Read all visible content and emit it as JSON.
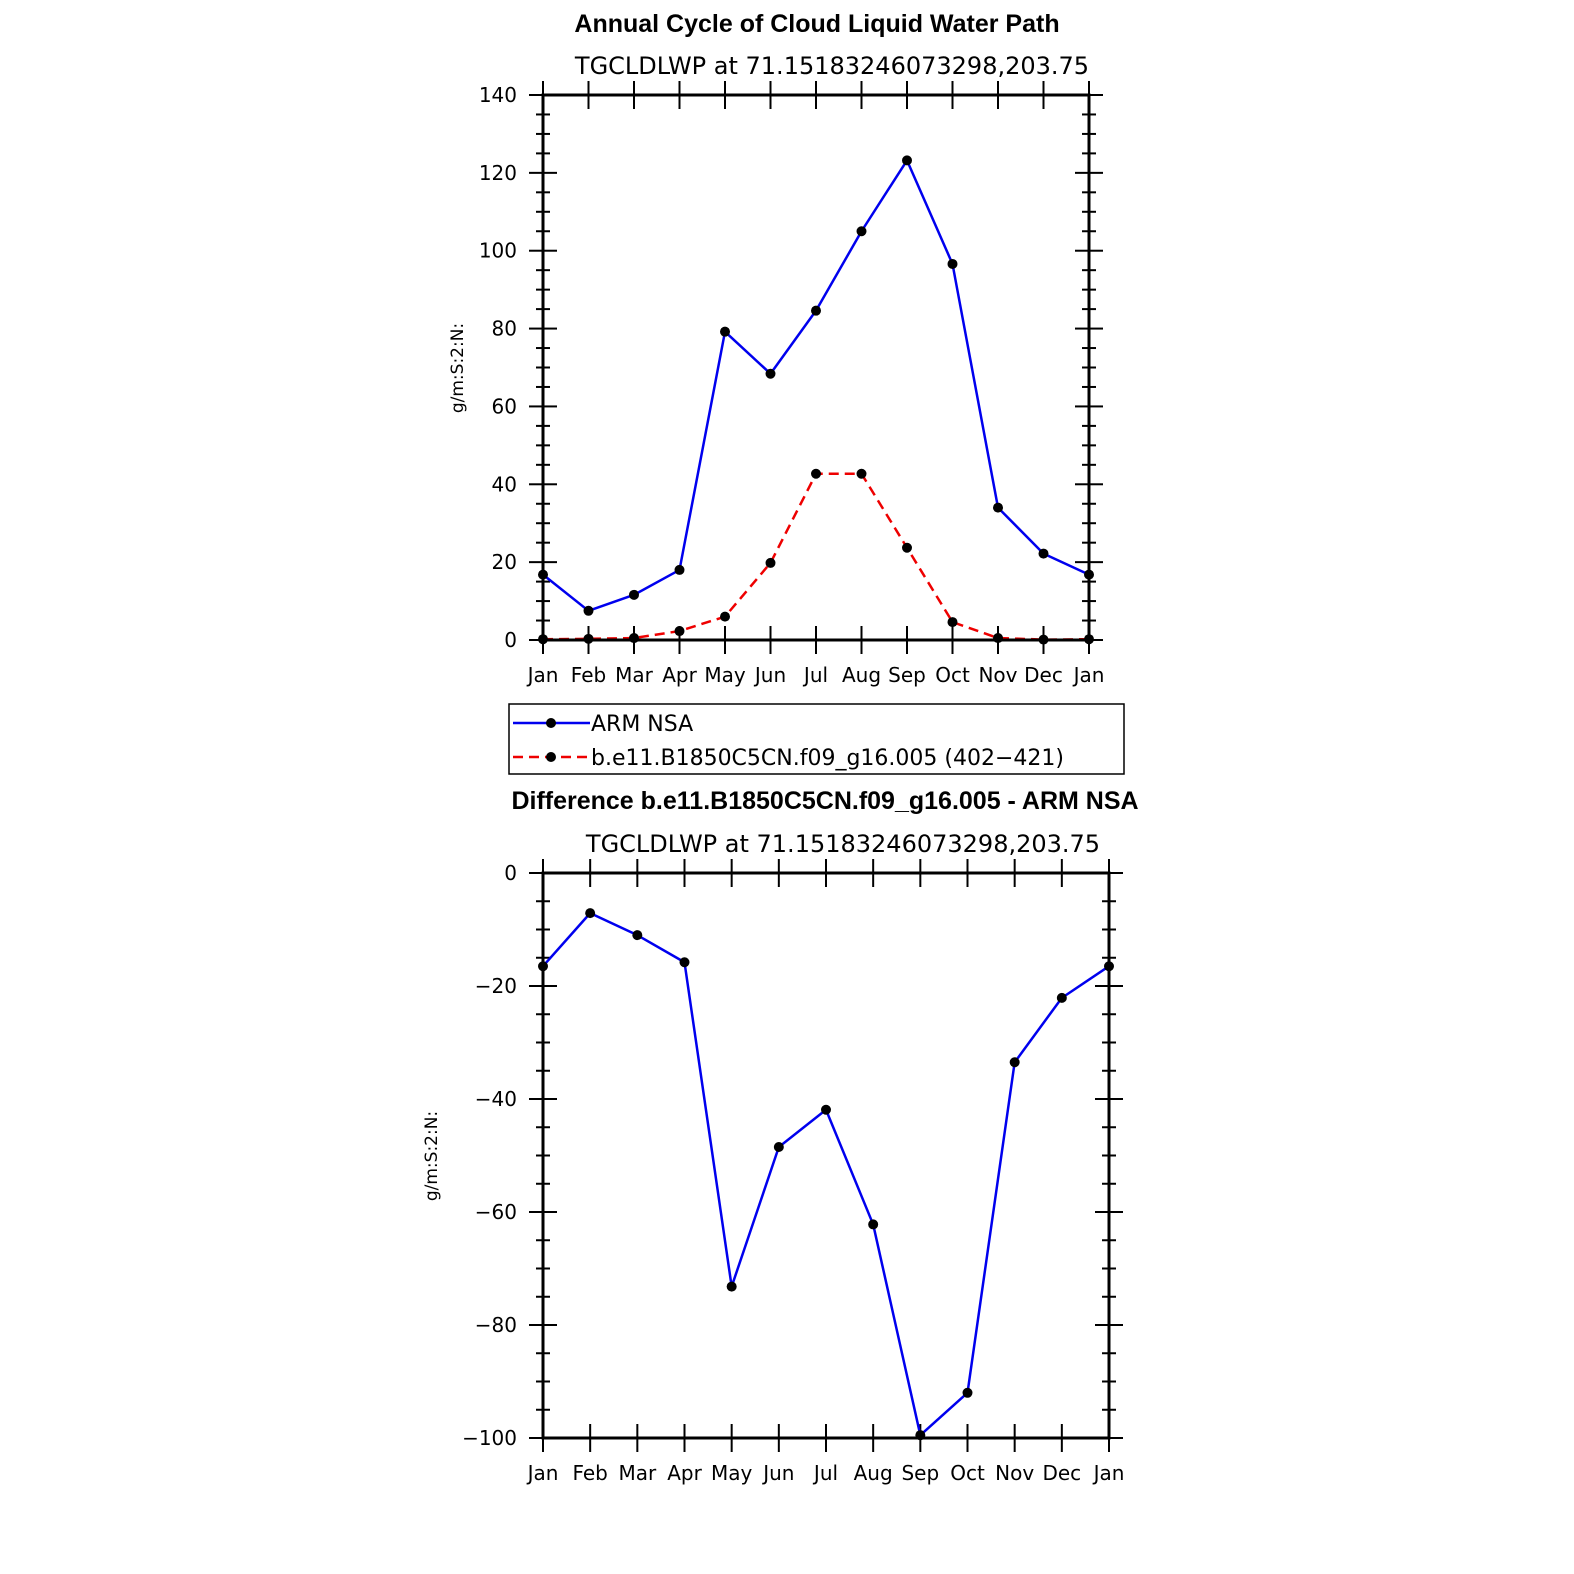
{
  "chart_data": [
    {
      "type": "line",
      "title": "Annual Cycle of Cloud Liquid Water Path",
      "subtitle": "TGCLDLWP  at  71.15183246073298,203.75",
      "ylabel": "g/m:S:2:N:",
      "xlabel": "",
      "categories": [
        "Jan",
        "Feb",
        "Mar",
        "Apr",
        "May",
        "Jun",
        "Jul",
        "Aug",
        "Sep",
        "Oct",
        "Nov",
        "Dec",
        "Jan"
      ],
      "ylim": [
        0,
        140
      ],
      "yticks": [
        0,
        20,
        40,
        60,
        80,
        100,
        120,
        140
      ],
      "ytick_labels": [
        "0",
        "20",
        "40",
        "60",
        "80",
        "100",
        "120",
        "140"
      ],
      "series": [
        {
          "name": "ARM NSA",
          "color": "#0000ee",
          "style": "solid",
          "values": [
            16.8,
            7.5,
            11.6,
            18.0,
            79.2,
            68.4,
            84.6,
            105.0,
            123.2,
            96.6,
            34.0,
            22.2,
            16.8
          ]
        },
        {
          "name": "b.e11.B1850C5CN.f09_g16.005 (402−421)",
          "color": "#ee0000",
          "style": "dashed",
          "values": [
            0.2,
            0.3,
            0.5,
            2.3,
            6.0,
            19.8,
            42.7,
            42.7,
            23.7,
            4.6,
            0.5,
            0.1,
            0.2
          ]
        }
      ],
      "legend": "below"
    },
    {
      "type": "line",
      "title": "Difference b.e11.B1850C5CN.f09_g16.005 - ARM NSA",
      "subtitle": "TGCLDLWP  at  71.15183246073298,203.75",
      "ylabel": "g/m:S:2:N:",
      "xlabel": "",
      "categories": [
        "Jan",
        "Feb",
        "Mar",
        "Apr",
        "May",
        "Jun",
        "Jul",
        "Aug",
        "Sep",
        "Oct",
        "Nov",
        "Dec",
        "Jan"
      ],
      "ylim": [
        -100,
        0
      ],
      "yticks": [
        -100,
        -80,
        -60,
        -40,
        -20,
        0
      ],
      "ytick_labels": [
        "−100",
        "−80",
        "−60",
        "−40",
        "−20",
        "0"
      ],
      "series": [
        {
          "name": "Difference",
          "color": "#0000ee",
          "style": "solid",
          "values": [
            -16.5,
            -7.1,
            -11.0,
            -15.8,
            -73.2,
            -48.5,
            -41.9,
            -62.2,
            -99.5,
            -92.0,
            -33.5,
            -22.1,
            -16.5
          ]
        }
      ]
    }
  ]
}
